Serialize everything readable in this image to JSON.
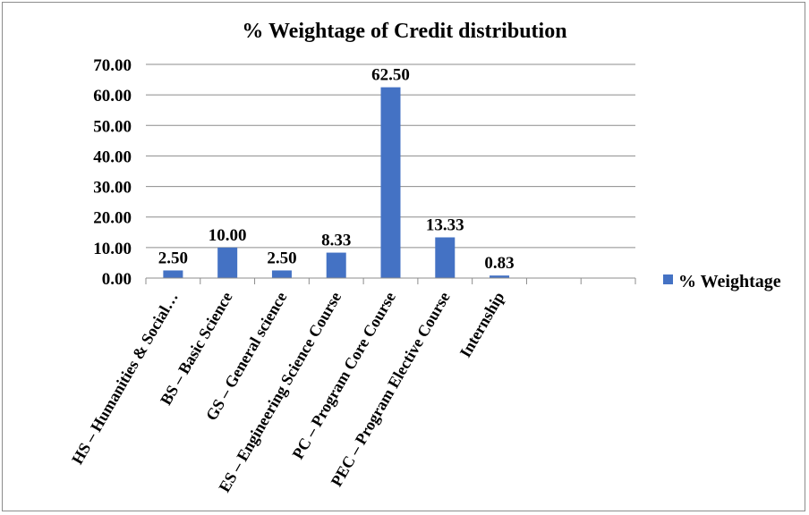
{
  "chart_data": {
    "type": "bar",
    "title": "% Weightage of Credit distribution",
    "xlabel": "",
    "ylabel": "",
    "categories": [
      "HS – Humanities & Social…",
      "BS – Basic Science",
      "GS – General science",
      "ES – Engineering Science Course",
      "PC – Program Core Course",
      "PEC – Program Elective Course",
      "Internship",
      "",
      ""
    ],
    "series": [
      {
        "name": "% Weightage",
        "values": [
          2.5,
          10.0,
          2.5,
          8.33,
          62.5,
          13.33,
          0.83,
          null,
          null
        ]
      }
    ],
    "data_labels": [
      "2.50",
      "10.00",
      "2.50",
      "8.33",
      "62.50",
      "13.33",
      "0.83",
      "",
      ""
    ],
    "ylim": [
      0,
      70
    ],
    "y_ticks": [
      "0.00",
      "10.00",
      "20.00",
      "30.00",
      "40.00",
      "50.00",
      "60.00",
      "70.00"
    ],
    "grid": true,
    "legend_position": "right",
    "bar_color": "#4472c4"
  }
}
